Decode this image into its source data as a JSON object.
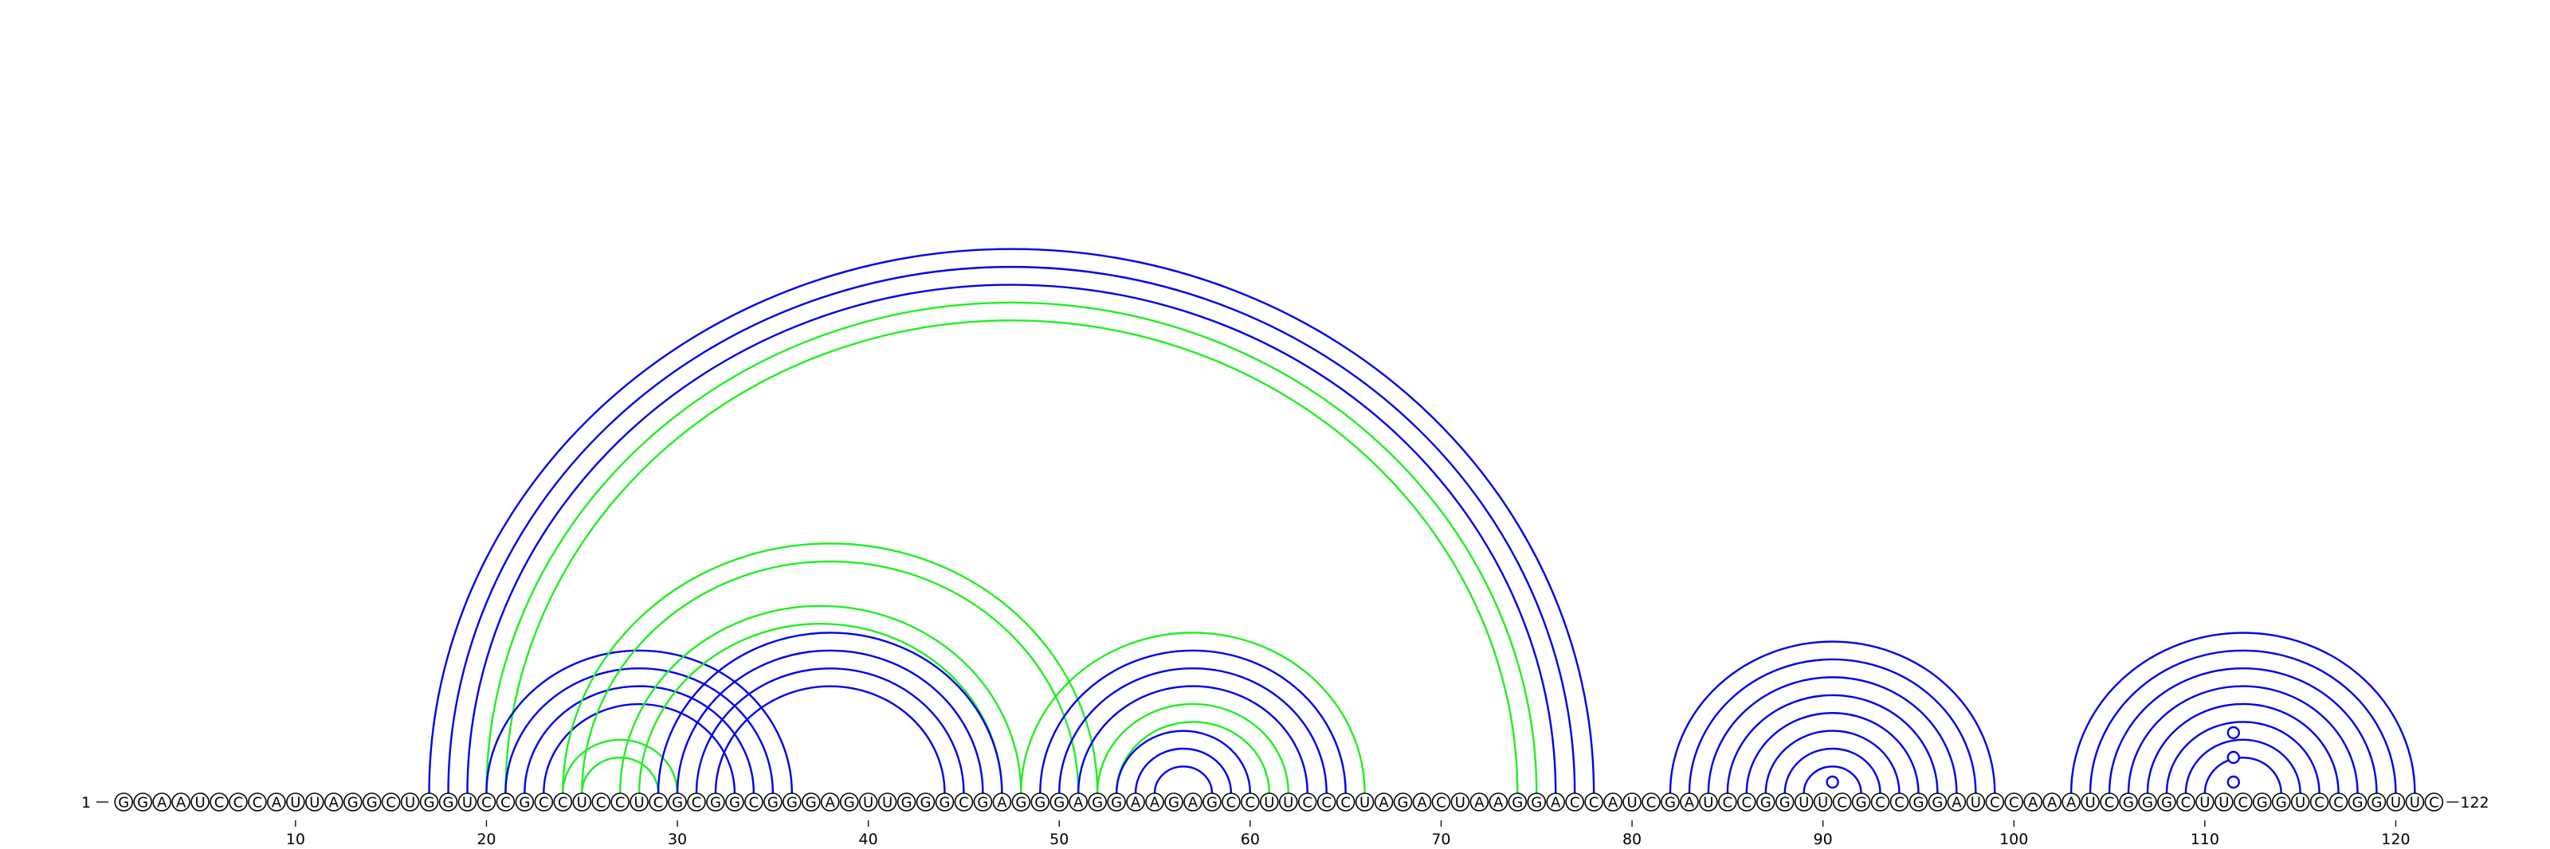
{
  "diagram": {
    "sequence": "GGAAUCCCAUUAGGCUGGUCCGCCUCCUCGCGGCGGGAGUUGGGCGAGGGAGGAAGAGCCUUCCCUAGACUAAGGACCAUCGAUCCGGUUCGCCGGAUCCAAAUCGGGCUUCGGUCCGGUUC",
    "start_label": "1",
    "end_label": "122",
    "tick_labels": [
      "10",
      "20",
      "30",
      "40",
      "50",
      "60",
      "70",
      "80",
      "90",
      "100",
      "110",
      "120"
    ],
    "colors": {
      "primary": "#0000ee",
      "alternative": "#22ee22"
    },
    "arcs": [
      {
        "i": 17,
        "j": 78,
        "color": "primary"
      },
      {
        "i": 18,
        "j": 77,
        "color": "primary"
      },
      {
        "i": 19,
        "j": 76,
        "color": "primary"
      },
      {
        "i": 20,
        "j": 75,
        "color": "alternative"
      },
      {
        "i": 21,
        "j": 74,
        "color": "alternative"
      },
      {
        "i": 20,
        "j": 36,
        "color": "primary"
      },
      {
        "i": 21,
        "j": 35,
        "color": "primary"
      },
      {
        "i": 22,
        "j": 34,
        "color": "primary"
      },
      {
        "i": 23,
        "j": 33,
        "color": "primary"
      },
      {
        "i": 24,
        "j": 52,
        "color": "alternative"
      },
      {
        "i": 25,
        "j": 51,
        "color": "alternative"
      },
      {
        "i": 27,
        "j": 48,
        "color": "alternative"
      },
      {
        "i": 28,
        "j": 47,
        "color": "alternative"
      },
      {
        "i": 24,
        "j": 30,
        "color": "alternative"
      },
      {
        "i": 25,
        "j": 29,
        "color": "alternative"
      },
      {
        "i": 29,
        "j": 47,
        "color": "primary"
      },
      {
        "i": 30,
        "j": 46,
        "color": "primary"
      },
      {
        "i": 31,
        "j": 45,
        "color": "primary"
      },
      {
        "i": 32,
        "j": 44,
        "color": "primary"
      },
      {
        "i": 48,
        "j": 66,
        "color": "alternative"
      },
      {
        "i": 49,
        "j": 65,
        "color": "primary"
      },
      {
        "i": 50,
        "j": 64,
        "color": "primary"
      },
      {
        "i": 51,
        "j": 63,
        "color": "primary"
      },
      {
        "i": 52,
        "j": 62,
        "color": "alternative"
      },
      {
        "i": 53,
        "j": 61,
        "color": "alternative"
      },
      {
        "i": 53,
        "j": 60,
        "color": "primary"
      },
      {
        "i": 54,
        "j": 59,
        "color": "primary"
      },
      {
        "i": 55,
        "j": 58,
        "color": "primary"
      },
      {
        "i": 82,
        "j": 99,
        "color": "primary"
      },
      {
        "i": 83,
        "j": 98,
        "color": "primary"
      },
      {
        "i": 84,
        "j": 97,
        "color": "primary"
      },
      {
        "i": 85,
        "j": 96,
        "color": "primary"
      },
      {
        "i": 86,
        "j": 95,
        "color": "primary"
      },
      {
        "i": 87,
        "j": 94,
        "color": "primary"
      },
      {
        "i": 88,
        "j": 93,
        "color": "primary"
      },
      {
        "i": 89,
        "j": 92,
        "color": "primary"
      },
      {
        "i": 103,
        "j": 121,
        "color": "primary"
      },
      {
        "i": 104,
        "j": 120,
        "color": "primary"
      },
      {
        "i": 105,
        "j": 119,
        "color": "primary"
      },
      {
        "i": 106,
        "j": 118,
        "color": "primary"
      },
      {
        "i": 107,
        "j": 117,
        "color": "primary"
      },
      {
        "i": 108,
        "j": 116,
        "color": "primary"
      },
      {
        "i": 109,
        "j": 115,
        "color": "primary"
      },
      {
        "i": 110,
        "j": 114,
        "color": "primary"
      }
    ],
    "bulge_markers": [
      {
        "i": 90,
        "j": 91,
        "color": "primary"
      },
      {
        "i": 111,
        "j": 112,
        "color": "primary"
      },
      {
        "i": 111,
        "j": 112,
        "color": "primary",
        "level": 2
      },
      {
        "i": 111,
        "j": 112,
        "color": "primary",
        "level": 3
      }
    ]
  }
}
